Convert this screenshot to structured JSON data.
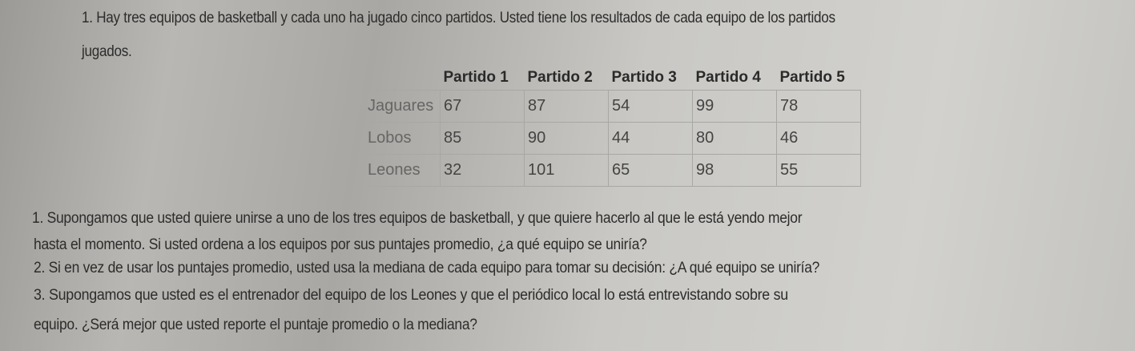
{
  "intro": {
    "line1": "1. Hay tres equipos de basketball y cada uno ha jugado cinco partidos.  Usted tiene los resultados de cada equipo de los partidos",
    "line2": "jugados."
  },
  "table": {
    "headers": [
      "",
      "Partido 1",
      "Partido 2",
      "Partido  3",
      "Partido 4",
      "Partido 5"
    ],
    "rows": [
      {
        "team": "Jaguares",
        "scores": [
          "67",
          "87",
          "54",
          "99",
          "78"
        ]
      },
      {
        "team": "Lobos",
        "scores": [
          "85",
          "90",
          "44",
          "80",
          "46"
        ]
      },
      {
        "team": "Leones",
        "scores": [
          "32",
          "101",
          "65",
          "98",
          "55"
        ]
      }
    ]
  },
  "questions": {
    "q1a": "1. Supongamos que usted quiere unirse a uno de los tres equipos de basketball, y que quiere hacerlo al que le está yendo mejor",
    "q1b": "hasta el momento.  Si usted ordena a los equipos por sus puntajes  promedio, ¿a qué equipo se uniría?",
    "q2": "2. Si en vez de usar los puntajes promedio, usted usa la mediana de cada equipo para tomar su decisión: ¿A qué equipo se uniría?",
    "q3a": "3. Supongamos que usted es el entrenador del equipo de los Leones y que el periódico local lo está entrevistando sobre su",
    "q3b": "equipo.  ¿Será mejor que usted reporte el puntaje promedio o la mediana?"
  }
}
